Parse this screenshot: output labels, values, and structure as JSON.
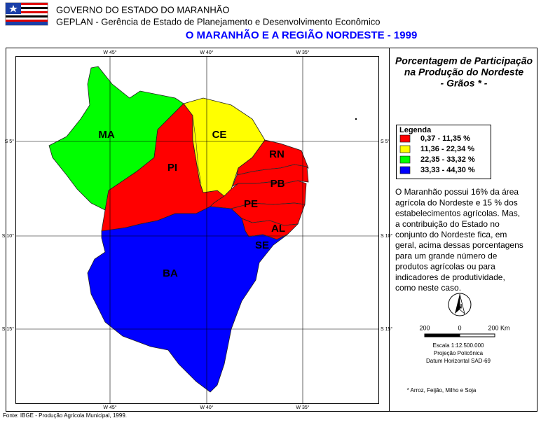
{
  "header": {
    "line1": "GOVERNO DO ESTADO DO MARANHÃO",
    "line2": "GEPLAN - Gerência de Estado de Planejamento e Desenvolvimento Econômico"
  },
  "title": "O MARANHÃO E A REGIÃO NORDESTE - 1999",
  "map": {
    "meridians": [
      "W 45°",
      "W 40°",
      "W 35°"
    ],
    "parallels": [
      "S 5°",
      "S 10°",
      "S 15°"
    ],
    "states": [
      {
        "label": "MA",
        "class": 2
      },
      {
        "label": "PI",
        "class": 0
      },
      {
        "label": "CE",
        "class": 1
      },
      {
        "label": "RN",
        "class": 0
      },
      {
        "label": "PB",
        "class": 0
      },
      {
        "label": "PE",
        "class": 0
      },
      {
        "label": "AL",
        "class": 0
      },
      {
        "label": "SE",
        "class": 0
      },
      {
        "label": "BA",
        "class": 3
      }
    ]
  },
  "panel": {
    "title": [
      "Porcentagem de Participação",
      "na Produção do Nordeste",
      "- Grãos * -"
    ],
    "legend": {
      "title": "Legenda",
      "items": [
        {
          "label": "0,37 - 11,35 %",
          "color": "#ff0000"
        },
        {
          "label": "11,36 - 22,34 %",
          "color": "#ffff00"
        },
        {
          "label": "22,35 - 33,32 %",
          "color": "#00ff00"
        },
        {
          "label": "33,33 - 44,30 %",
          "color": "#0000ff"
        }
      ]
    },
    "text": [
      "O Maranhão possui 16% da área",
      "agrícola do Nordeste e 15 % dos",
      "estabelecimentos agrícolas. Mas,",
      "a contribuição do Estado no",
      "conjunto do Nordeste fica, em",
      "geral, acima dessas porcentagens",
      "para um grande número de",
      "produtos agrícolas ou para",
      "indicadores de produtividade,",
      "como neste caso."
    ],
    "scale": {
      "left": "200",
      "mid": "0",
      "right": "200 Km"
    },
    "scale_notes": [
      "Escala 1:12.500.000",
      "Projeção Policônica",
      "Datum Horizontal SAD-69"
    ],
    "footnote": "* Arroz, Feijão, Milho e Soja"
  },
  "source": "Fonte: IBGE - Produção Agrícola Municipal, 1999."
}
